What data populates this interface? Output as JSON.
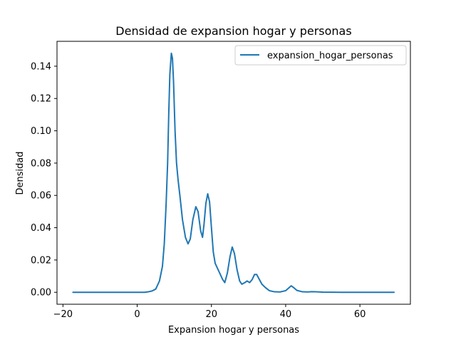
{
  "chart_data": {
    "type": "line",
    "title": "Densidad de expansion hogar y personas",
    "xlabel": "Expansion hogar y personas",
    "ylabel": "Densidad",
    "xlim": [
      -21.6,
      73.6
    ],
    "ylim": [
      -0.0074,
      0.1554
    ],
    "xticks": [
      -20,
      0,
      20,
      40,
      60
    ],
    "xtick_labels": [
      "−20",
      "0",
      "20",
      "40",
      "60"
    ],
    "yticks": [
      0.0,
      0.02,
      0.04,
      0.06,
      0.08,
      0.1,
      0.12,
      0.14
    ],
    "ytick_labels": [
      "0.00",
      "0.02",
      "0.04",
      "0.06",
      "0.08",
      "0.10",
      "0.12",
      "0.14"
    ],
    "grid": false,
    "legend_position": "top-right",
    "colors": {
      "series": "#1f77b4",
      "axes": "#000000",
      "background": "#ffffff"
    },
    "series": [
      {
        "name": "expansion_hogar_personas",
        "points": [
          [
            -17.3,
            0.0
          ],
          [
            -10,
            0.0
          ],
          [
            0,
            0.0
          ],
          [
            2,
            0.0
          ],
          [
            3,
            0.0003
          ],
          [
            4,
            0.0008
          ],
          [
            5,
            0.002
          ],
          [
            6,
            0.007
          ],
          [
            6.8,
            0.016
          ],
          [
            7.3,
            0.03
          ],
          [
            7.8,
            0.055
          ],
          [
            8.2,
            0.08
          ],
          [
            8.5,
            0.11
          ],
          [
            8.8,
            0.135
          ],
          [
            9.2,
            0.148
          ],
          [
            9.5,
            0.145
          ],
          [
            9.8,
            0.13
          ],
          [
            10.2,
            0.1
          ],
          [
            10.6,
            0.08
          ],
          [
            11.0,
            0.07
          ],
          [
            11.5,
            0.06
          ],
          [
            12.2,
            0.045
          ],
          [
            13.0,
            0.034
          ],
          [
            13.7,
            0.03
          ],
          [
            14.3,
            0.033
          ],
          [
            15.0,
            0.045
          ],
          [
            15.8,
            0.053
          ],
          [
            16.4,
            0.05
          ],
          [
            17.1,
            0.038
          ],
          [
            17.6,
            0.034
          ],
          [
            18.0,
            0.042
          ],
          [
            18.5,
            0.055
          ],
          [
            19.0,
            0.061
          ],
          [
            19.5,
            0.056
          ],
          [
            20.0,
            0.04
          ],
          [
            20.5,
            0.025
          ],
          [
            21.0,
            0.018
          ],
          [
            22.0,
            0.013
          ],
          [
            23.0,
            0.008
          ],
          [
            23.6,
            0.006
          ],
          [
            24.3,
            0.012
          ],
          [
            25.0,
            0.022
          ],
          [
            25.6,
            0.028
          ],
          [
            26.2,
            0.024
          ],
          [
            26.9,
            0.014
          ],
          [
            27.6,
            0.007
          ],
          [
            28.2,
            0.005
          ],
          [
            29.0,
            0.006
          ],
          [
            29.6,
            0.007
          ],
          [
            30.3,
            0.006
          ],
          [
            31.0,
            0.008
          ],
          [
            31.6,
            0.011
          ],
          [
            32.2,
            0.011
          ],
          [
            32.9,
            0.008
          ],
          [
            33.6,
            0.005
          ],
          [
            34.5,
            0.003
          ],
          [
            35.6,
            0.001
          ],
          [
            37.0,
            0.0003
          ],
          [
            38.5,
            0.0002
          ],
          [
            40.0,
            0.001
          ],
          [
            41.0,
            0.003
          ],
          [
            41.5,
            0.004
          ],
          [
            42.1,
            0.003
          ],
          [
            43.0,
            0.0012
          ],
          [
            44.5,
            0.0003
          ],
          [
            46.0,
            0.0002
          ],
          [
            47.0,
            0.0004
          ],
          [
            48.0,
            0.0003
          ],
          [
            50.0,
            0.0001
          ],
          [
            55.0,
            0.0
          ],
          [
            60.0,
            0.0
          ],
          [
            69.2,
            0.0
          ]
        ]
      }
    ]
  }
}
